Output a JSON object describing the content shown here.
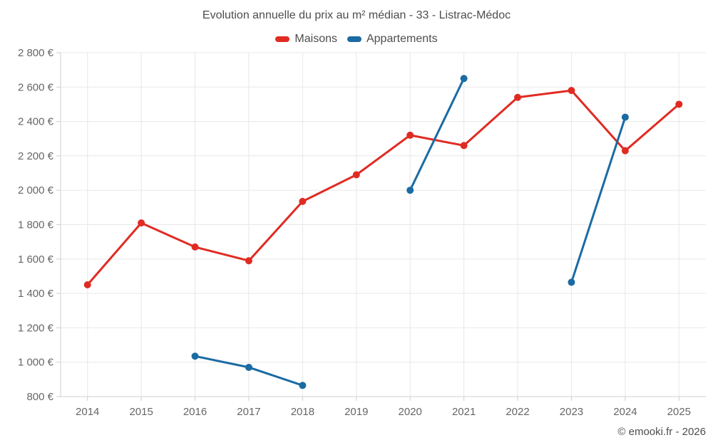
{
  "chart": {
    "title": "Evolution annuelle du prix au m² médian - 33 - Listrac-Médoc",
    "footer": "© emooki.fr - 2026"
  },
  "chart_data": {
    "type": "line",
    "title": "Evolution annuelle du prix au m² médian - 33 - Listrac-Médoc",
    "categories": [
      "2014",
      "2015",
      "2016",
      "2017",
      "2018",
      "2019",
      "2020",
      "2021",
      "2022",
      "2023",
      "2024",
      "2025"
    ],
    "series": [
      {
        "name": "Maisons",
        "color": "#e02b23",
        "values": [
          1450,
          1810,
          1670,
          1590,
          1935,
          2090,
          2320,
          2260,
          2540,
          2580,
          2230,
          2500
        ]
      },
      {
        "name": "Appartements",
        "color": "#1a6ba3",
        "values": [
          null,
          null,
          1035,
          970,
          865,
          null,
          2000,
          2650,
          null,
          1465,
          2425,
          null
        ]
      }
    ],
    "xlabel": "",
    "ylabel": "",
    "ylim": [
      800,
      2800
    ],
    "y_tick_step": 200,
    "y_tick_suffix": " €",
    "grid": true,
    "legend_position": "top",
    "colors": {
      "grid_line": "#e8e8e8",
      "axis_line": "#cfcfcf",
      "tick_label": "#666666",
      "title_text": "#4d4d4d"
    }
  }
}
